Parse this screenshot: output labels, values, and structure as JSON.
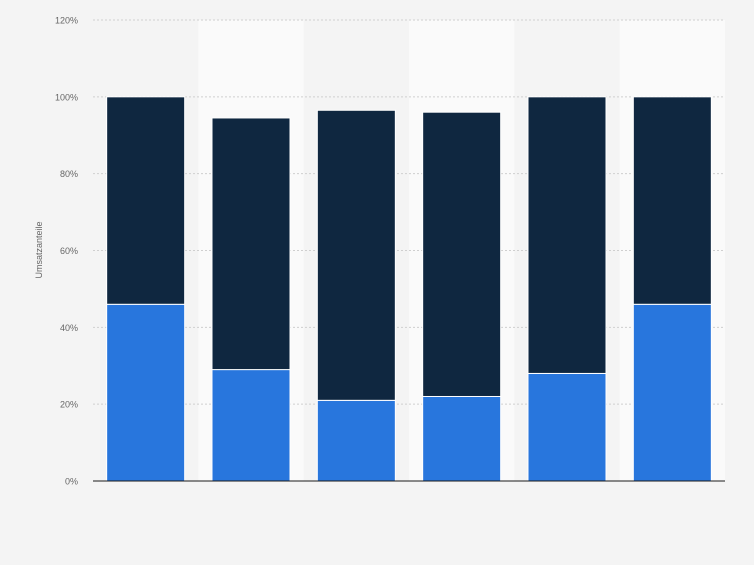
{
  "chart_data": {
    "type": "bar",
    "stacked": true,
    "categories": [
      "",
      "",
      "",
      "",
      "",
      ""
    ],
    "series": [
      {
        "values": [
          46,
          29,
          21,
          22,
          28,
          46
        ],
        "color": "#2876dd"
      },
      {
        "values": [
          54,
          65.5,
          75.5,
          74,
          72,
          54
        ],
        "color": "#0f2740"
      }
    ],
    "ylabel": "Umsatzanteile",
    "ylim": [
      0,
      120
    ],
    "yticks": [
      0,
      20,
      40,
      60,
      80,
      100,
      120
    ],
    "yticklabels": [
      "0%",
      "20%",
      "40%",
      "60%",
      "80%",
      "100%",
      "120%"
    ],
    "grid": true,
    "legend": "none"
  }
}
